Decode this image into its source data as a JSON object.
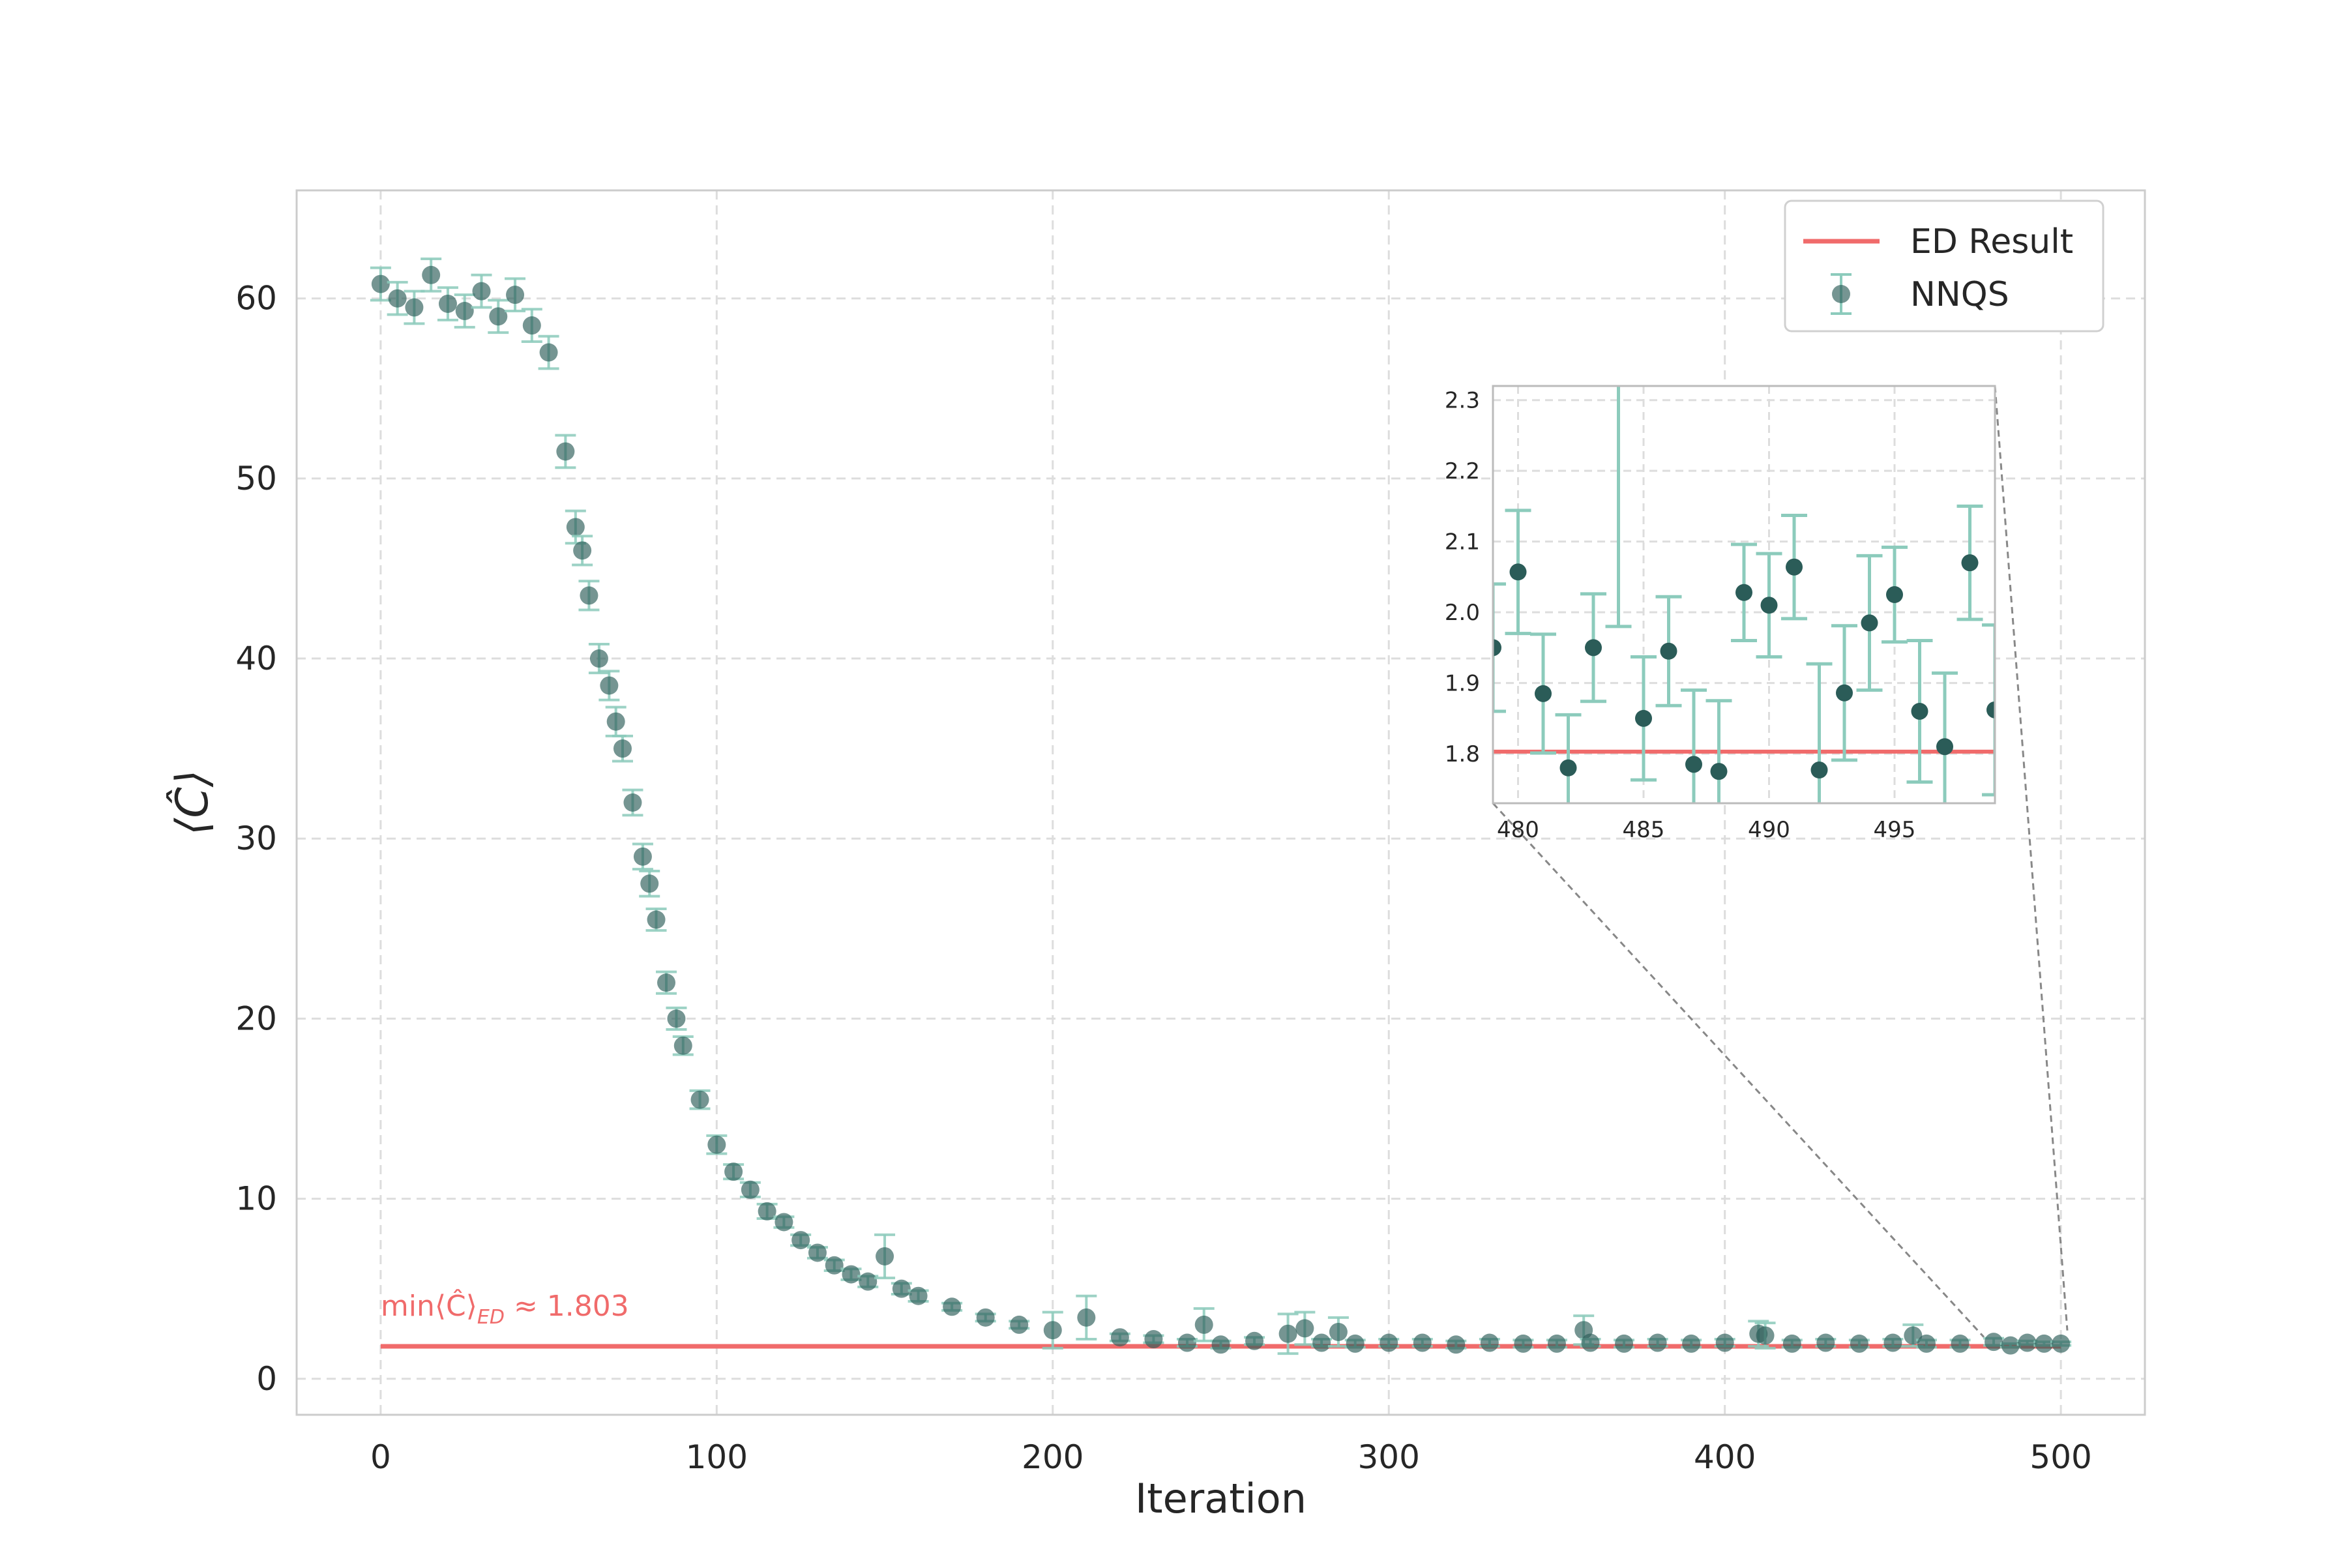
{
  "chart_data": {
    "type": "scatter",
    "xlabel": "Iteration",
    "ylabel": "⟨Ĉ⟩",
    "xlim": [
      -25,
      525
    ],
    "ylim": [
      -2,
      66
    ],
    "xticks": [
      0,
      100,
      200,
      300,
      400,
      500
    ],
    "yticks": [
      0,
      10,
      20,
      30,
      40,
      50,
      60
    ],
    "grid": true,
    "legend": {
      "placement": "top-right",
      "entries": [
        "ED Result",
        "NNQS"
      ]
    },
    "colors": {
      "ed_line": "#f06b6b",
      "nnqs_marker": "#2b5c58",
      "nnqs_error": "#8ccbbc",
      "annotation": "#f06b6b"
    },
    "annotation": {
      "text_main": "min⟨Ĉ⟩",
      "text_sub": "ED",
      "text_value": " ≈ 1.803",
      "x": 0,
      "y": 3.5
    },
    "series": [
      {
        "name": "ED Result",
        "kind": "hline",
        "y": 1.803,
        "x": [
          0,
          500
        ]
      },
      {
        "name": "NNQS",
        "kind": "errorbar-scatter",
        "x": [
          0,
          5,
          10,
          15,
          20,
          25,
          30,
          35,
          40,
          45,
          50,
          55,
          58,
          60,
          62,
          65,
          68,
          70,
          72,
          75,
          78,
          80,
          82,
          85,
          88,
          90,
          95,
          100,
          105,
          110,
          115,
          120,
          125,
          130,
          135,
          140,
          145,
          150,
          155,
          160,
          170,
          180,
          190,
          200,
          210,
          220,
          230,
          240,
          245,
          250,
          260,
          270,
          275,
          280,
          285,
          290,
          300,
          310,
          320,
          330,
          340,
          350,
          358,
          360,
          370,
          380,
          390,
          400,
          410,
          412,
          420,
          430,
          440,
          450,
          456,
          460,
          470,
          480,
          485,
          490,
          495,
          500
        ],
        "y": [
          60.8,
          60.0,
          59.5,
          61.3,
          59.7,
          59.3,
          60.4,
          59.0,
          60.2,
          58.5,
          57.0,
          51.5,
          47.3,
          46.0,
          43.5,
          40.0,
          38.5,
          36.5,
          35.0,
          32.0,
          29.0,
          27.5,
          25.5,
          22.0,
          20.0,
          18.5,
          15.5,
          13.0,
          11.5,
          10.5,
          9.3,
          8.7,
          7.7,
          7.0,
          6.3,
          5.8,
          5.4,
          6.8,
          5.0,
          4.6,
          4.0,
          3.4,
          3.0,
          2.7,
          3.4,
          2.3,
          2.2,
          2.0,
          3.0,
          1.9,
          2.1,
          2.5,
          2.8,
          2.0,
          2.6,
          1.95,
          2.0,
          2.0,
          1.9,
          2.0,
          1.95,
          1.95,
          2.7,
          2.0,
          1.95,
          2.0,
          1.95,
          2.0,
          2.5,
          2.4,
          1.95,
          2.0,
          1.95,
          2.0,
          2.4,
          1.95,
          1.95,
          2.05,
          1.85,
          2.0,
          1.95,
          1.95
        ],
        "yerr": [
          0.9,
          0.9,
          0.9,
          0.9,
          0.9,
          0.9,
          0.9,
          0.9,
          0.9,
          0.9,
          0.9,
          0.9,
          0.9,
          0.8,
          0.8,
          0.8,
          0.8,
          0.8,
          0.7,
          0.7,
          0.7,
          0.7,
          0.6,
          0.6,
          0.6,
          0.5,
          0.5,
          0.5,
          0.4,
          0.4,
          0.4,
          0.3,
          0.3,
          0.3,
          0.3,
          0.3,
          0.3,
          1.2,
          0.3,
          0.3,
          0.2,
          0.2,
          0.2,
          1.0,
          1.2,
          0.2,
          0.2,
          0.2,
          0.9,
          0.2,
          0.2,
          1.1,
          0.9,
          0.2,
          0.8,
          0.2,
          0.2,
          0.2,
          0.2,
          0.2,
          0.2,
          0.2,
          0.8,
          0.2,
          0.2,
          0.2,
          0.2,
          0.2,
          0.7,
          0.7,
          0.2,
          0.2,
          0.2,
          0.2,
          0.6,
          0.2,
          0.2,
          0.2,
          0.1,
          0.1,
          0.1,
          0.1
        ]
      }
    ],
    "inset": {
      "xlim": [
        479,
        499
      ],
      "ylim": [
        1.73,
        2.32
      ],
      "xticks": [
        480,
        485,
        490,
        495
      ],
      "yticks": [
        1.8,
        1.9,
        2.0,
        2.1,
        2.2,
        2.3
      ],
      "ed_y": 1.803,
      "points": {
        "x": [
          479,
          480,
          481,
          482,
          483,
          484,
          485,
          486,
          487,
          488,
          489,
          490,
          491,
          492,
          493,
          494,
          495,
          496,
          497,
          498,
          499
        ],
        "y": [
          1.95,
          2.057,
          1.885,
          1.78,
          1.95,
          2.42,
          1.85,
          1.945,
          1.785,
          1.775,
          2.028,
          2.01,
          2.064,
          1.777,
          1.886,
          1.985,
          2.025,
          1.86,
          1.81,
          2.07,
          1.862
        ],
        "yerr": [
          0.09,
          0.087,
          0.084,
          0.075,
          0.076,
          0.44,
          0.087,
          0.077,
          0.105,
          0.1,
          0.068,
          0.073,
          0.073,
          0.15,
          0.095,
          0.095,
          0.067,
          0.1,
          0.104,
          0.08,
          0.12
        ]
      }
    }
  }
}
